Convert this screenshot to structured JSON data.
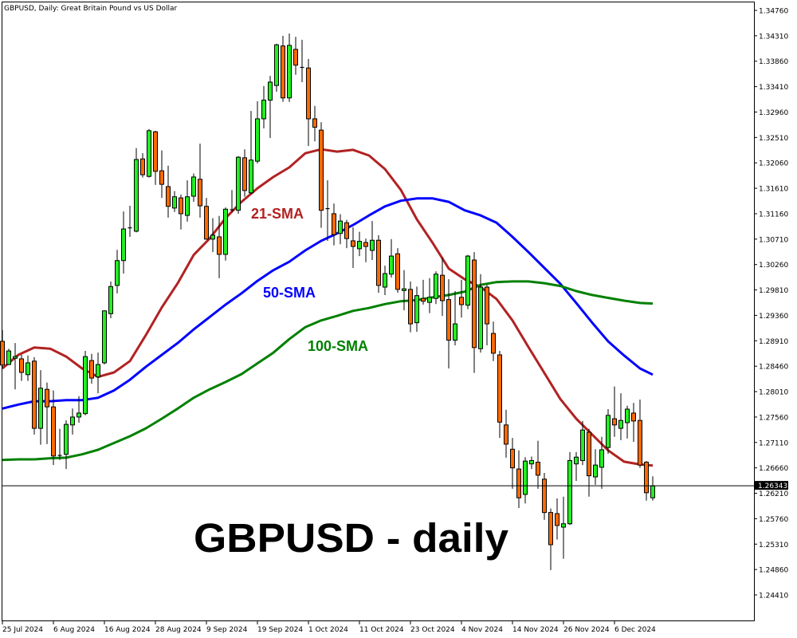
{
  "chart_data": {
    "type": "candlestick",
    "title": "GBPUSD, Daily:  Great Britain Pound vs US Dollar",
    "annotation": "GBPUSD - daily",
    "ylim": [
      1.2411,
      1.3476
    ],
    "grid": false,
    "y_ticks": [
      "1.34760",
      "1.34310",
      "1.33860",
      "1.33410",
      "1.32960",
      "1.32510",
      "1.32060",
      "1.31610",
      "1.31160",
      "1.30710",
      "1.30260",
      "1.29810",
      "1.29360",
      "1.28910",
      "1.28460",
      "1.28010",
      "1.27560",
      "1.27110",
      "1.26660",
      "1.26210",
      "1.25760",
      "1.25310",
      "1.24860",
      "1.24410"
    ],
    "x_ticks": [
      {
        "label": "25 Jul 2024",
        "at_candle": 0
      },
      {
        "label": "6 Aug 2024",
        "at_candle": 8
      },
      {
        "label": "16 Aug 2024",
        "at_candle": 16
      },
      {
        "label": "28 Aug 2024",
        "at_candle": 24
      },
      {
        "label": "9 Sep 2024",
        "at_candle": 32
      },
      {
        "label": "19 Sep 2024",
        "at_candle": 40
      },
      {
        "label": "1 Oct 2024",
        "at_candle": 48
      },
      {
        "label": "11 Oct 2024",
        "at_candle": 56
      },
      {
        "label": "23 Oct 2024",
        "at_candle": 64
      },
      {
        "label": "4 Nov 2024",
        "at_candle": 72
      },
      {
        "label": "14 Nov 2024",
        "at_candle": 80
      },
      {
        "label": "26 Nov 2024",
        "at_candle": 88
      },
      {
        "label": "6 Dec 2024",
        "at_candle": 96
      }
    ],
    "current_price": {
      "value": 1.26343,
      "label": "1.26343"
    },
    "colors": {
      "bull": "#22ee22",
      "bear": "#ff6a00",
      "sma21": "#b22222",
      "sma50": "#0000ff",
      "sma100": "#008000",
      "price_label_bg": "#000000"
    },
    "candles_ohlc": [
      [
        1.289,
        1.291,
        1.2842,
        1.2848
      ],
      [
        1.2849,
        1.2877,
        1.2848,
        1.2873
      ],
      [
        1.286,
        1.2887,
        1.2805,
        1.2863
      ],
      [
        1.2859,
        1.2866,
        1.282,
        1.2835
      ],
      [
        1.2831,
        1.2865,
        1.282,
        1.2852
      ],
      [
        1.2855,
        1.2862,
        1.2725,
        1.2736
      ],
      [
        1.2736,
        1.2839,
        1.2707,
        1.2807
      ],
      [
        1.2805,
        1.2817,
        1.2708,
        1.2774
      ],
      [
        1.2774,
        1.2803,
        1.2671,
        1.2687
      ],
      [
        1.2687,
        1.2735,
        1.268,
        1.2688
      ],
      [
        1.269,
        1.275,
        1.2664,
        1.2743
      ],
      [
        1.2742,
        1.2771,
        1.2725,
        1.2756
      ],
      [
        1.2756,
        1.2793,
        1.2746,
        1.2763
      ],
      [
        1.2762,
        1.2873,
        1.2759,
        1.2863
      ],
      [
        1.2856,
        1.2868,
        1.2815,
        1.2825
      ],
      [
        1.2827,
        1.287,
        1.2798,
        1.2849
      ],
      [
        1.2852,
        1.2945,
        1.2849,
        1.2944
      ],
      [
        1.2939,
        1.2996,
        1.2931,
        1.2987
      ],
      [
        1.2989,
        1.3052,
        1.2975,
        1.3033
      ],
      [
        1.3033,
        1.312,
        1.301,
        1.3089
      ],
      [
        1.309,
        1.313,
        1.3075,
        1.3091
      ],
      [
        1.3085,
        1.3232,
        1.3083,
        1.3212
      ],
      [
        1.3213,
        1.3223,
        1.318,
        1.3185
      ],
      [
        1.3182,
        1.3266,
        1.318,
        1.3263
      ],
      [
        1.3261,
        1.3263,
        1.3167,
        1.3191
      ],
      [
        1.3192,
        1.3228,
        1.3144,
        1.3168
      ],
      [
        1.3164,
        1.3201,
        1.3109,
        1.3129
      ],
      [
        1.3126,
        1.3156,
        1.3119,
        1.3146
      ],
      [
        1.3144,
        1.315,
        1.3088,
        1.3116
      ],
      [
        1.3113,
        1.3175,
        1.3102,
        1.3146
      ],
      [
        1.3147,
        1.3187,
        1.3137,
        1.3181
      ],
      [
        1.3177,
        1.324,
        1.3109,
        1.313
      ],
      [
        1.3129,
        1.3144,
        1.307,
        1.3071
      ],
      [
        1.3071,
        1.3108,
        1.3048,
        1.3078
      ],
      [
        1.3075,
        1.3112,
        1.3002,
        1.3044
      ],
      [
        1.3044,
        1.3127,
        1.3033,
        1.3124
      ],
      [
        1.3122,
        1.3158,
        1.3119,
        1.3123
      ],
      [
        1.3122,
        1.3218,
        1.3116,
        1.3216
      ],
      [
        1.3215,
        1.323,
        1.3146,
        1.3157
      ],
      [
        1.3153,
        1.3298,
        1.3151,
        1.3211
      ],
      [
        1.3209,
        1.3315,
        1.3205,
        1.3284
      ],
      [
        1.3284,
        1.3342,
        1.3267,
        1.3317
      ],
      [
        1.3317,
        1.336,
        1.325,
        1.3349
      ],
      [
        1.3343,
        1.3417,
        1.3332,
        1.3415
      ],
      [
        1.3413,
        1.3431,
        1.3314,
        1.3321
      ],
      [
        1.3321,
        1.3435,
        1.3314,
        1.3414
      ],
      [
        1.3407,
        1.3429,
        1.3362,
        1.3379
      ],
      [
        1.3375,
        1.3424,
        1.3349,
        1.3374
      ],
      [
        1.3374,
        1.339,
        1.3236,
        1.3284
      ],
      [
        1.3284,
        1.3307,
        1.3244,
        1.3269
      ],
      [
        1.3264,
        1.3278,
        1.3091,
        1.3122
      ],
      [
        1.3125,
        1.3175,
        1.3068,
        1.3124
      ],
      [
        1.3116,
        1.3134,
        1.306,
        1.3079
      ],
      [
        1.3081,
        1.3115,
        1.3062,
        1.3103
      ],
      [
        1.31,
        1.3105,
        1.3055,
        1.3072
      ],
      [
        1.3068,
        1.3092,
        1.302,
        1.3058
      ],
      [
        1.3054,
        1.3084,
        1.3041,
        1.3067
      ],
      [
        1.3065,
        1.3072,
        1.303,
        1.3058
      ],
      [
        1.3051,
        1.3103,
        1.3034,
        1.3069
      ],
      [
        1.3069,
        1.3078,
        1.2976,
        1.2989
      ],
      [
        1.2986,
        1.3024,
        1.2972,
        1.301
      ],
      [
        1.3009,
        1.3071,
        1.3003,
        1.3041
      ],
      [
        1.3045,
        1.3055,
        1.2976,
        1.2982
      ],
      [
        1.298,
        1.3016,
        1.2945,
        1.2983
      ],
      [
        1.2982,
        1.2996,
        1.2906,
        1.2921
      ],
      [
        1.2923,
        1.2987,
        1.2907,
        1.2971
      ],
      [
        1.2966,
        1.2999,
        1.2955,
        1.2961
      ],
      [
        1.2959,
        1.3002,
        1.294,
        1.2968
      ],
      [
        1.2966,
        1.3014,
        1.2956,
        1.3009
      ],
      [
        1.3007,
        1.3038,
        1.2935,
        1.2962
      ],
      [
        1.2964,
        1.3,
        1.2842,
        1.2892
      ],
      [
        1.2892,
        1.2979,
        1.2883,
        1.2921
      ],
      [
        1.2968,
        1.2999,
        1.2932,
        1.2955
      ],
      [
        1.2954,
        1.3043,
        1.2947,
        1.3041
      ],
      [
        1.3034,
        1.3048,
        1.2834,
        1.2879
      ],
      [
        1.2877,
        1.3009,
        1.287,
        1.2986
      ],
      [
        1.2986,
        1.299,
        1.2883,
        1.2921
      ],
      [
        1.2904,
        1.2925,
        1.2855,
        1.2869
      ],
      [
        1.2866,
        1.2873,
        1.2719,
        1.2747
      ],
      [
        1.2742,
        1.2769,
        1.2684,
        1.2708
      ],
      [
        1.2699,
        1.2719,
        1.2629,
        1.2666
      ],
      [
        1.2664,
        1.2697,
        1.2595,
        1.2613
      ],
      [
        1.2619,
        1.2685,
        1.2603,
        1.2678
      ],
      [
        1.2673,
        1.2686,
        1.2664,
        1.2679
      ],
      [
        1.2676,
        1.2714,
        1.2629,
        1.2653
      ],
      [
        1.2646,
        1.2657,
        1.2574,
        1.2587
      ],
      [
        1.2587,
        1.2594,
        1.2485,
        1.253
      ],
      [
        1.2585,
        1.2612,
        1.2539,
        1.2564
      ],
      [
        1.2561,
        1.2615,
        1.2505,
        1.2567
      ],
      [
        1.2567,
        1.2694,
        1.2565,
        1.2679
      ],
      [
        1.2673,
        1.2694,
        1.2643,
        1.2685
      ],
      [
        1.2679,
        1.2749,
        1.2671,
        1.2733
      ],
      [
        1.2729,
        1.2735,
        1.2615,
        1.2652
      ],
      [
        1.265,
        1.2699,
        1.2636,
        1.2671
      ],
      [
        1.2667,
        1.2721,
        1.2629,
        1.2698
      ],
      [
        1.2702,
        1.277,
        1.2691,
        1.2759
      ],
      [
        1.2753,
        1.281,
        1.2721,
        1.2742
      ],
      [
        1.2736,
        1.2798,
        1.2715,
        1.275
      ],
      [
        1.2746,
        1.2776,
        1.2718,
        1.277
      ],
      [
        1.2763,
        1.2781,
        1.2712,
        1.2749
      ],
      [
        1.275,
        1.2787,
        1.2666,
        1.2671
      ],
      [
        1.2676,
        1.2678,
        1.2608,
        1.2622
      ],
      [
        1.2613,
        1.2651,
        1.2608,
        1.2634
      ]
    ],
    "series": [
      {
        "name": "21-SMA",
        "color": "#b22222",
        "points_candle_price": [
          [
            0,
            1.2842
          ],
          [
            2.5,
            1.2866
          ],
          [
            5,
            1.2879
          ],
          [
            7.5,
            1.2877
          ],
          [
            10,
            1.2863
          ],
          [
            12.5,
            1.2842
          ],
          [
            15,
            1.2827
          ],
          [
            17.5,
            1.2835
          ],
          [
            20,
            1.2855
          ],
          [
            22.5,
            1.2901
          ],
          [
            25,
            1.295
          ],
          [
            27.5,
            1.2993
          ],
          [
            30,
            1.3043
          ],
          [
            32.5,
            1.3072
          ],
          [
            35,
            1.3108
          ],
          [
            37.5,
            1.3137
          ],
          [
            40,
            1.3161
          ],
          [
            42.5,
            1.3181
          ],
          [
            45,
            1.3198
          ],
          [
            47.5,
            1.3223
          ],
          [
            50,
            1.323
          ],
          [
            52.5,
            1.3226
          ],
          [
            55,
            1.3229
          ],
          [
            57.5,
            1.3219
          ],
          [
            60,
            1.3195
          ],
          [
            62.5,
            1.3158
          ],
          [
            65,
            1.3106
          ],
          [
            67.5,
            1.3064
          ],
          [
            70,
            1.3019
          ],
          [
            72.5,
            1.3
          ],
          [
            75,
            1.2986
          ],
          [
            77.5,
            1.2965
          ],
          [
            80,
            1.2927
          ],
          [
            82.5,
            1.288
          ],
          [
            85,
            1.2834
          ],
          [
            87.5,
            1.2788
          ],
          [
            90,
            1.2753
          ],
          [
            92.5,
            1.2725
          ],
          [
            95,
            1.2697
          ],
          [
            97.5,
            1.2677
          ],
          [
            100,
            1.2672
          ],
          [
            102,
            1.267
          ]
        ]
      },
      {
        "name": "50-SMA",
        "color": "#0000ff",
        "points_candle_price": [
          [
            0,
            1.2771
          ],
          [
            2.5,
            1.2778
          ],
          [
            5,
            1.2784
          ],
          [
            7.5,
            1.2784
          ],
          [
            10,
            1.2786
          ],
          [
            12.5,
            1.2786
          ],
          [
            15,
            1.279
          ],
          [
            17.5,
            1.2803
          ],
          [
            20,
            1.2822
          ],
          [
            22.5,
            1.2845
          ],
          [
            25,
            1.2866
          ],
          [
            27.5,
            1.2887
          ],
          [
            30,
            1.2911
          ],
          [
            32.5,
            1.2933
          ],
          [
            35,
            1.2955
          ],
          [
            37.5,
            1.2975
          ],
          [
            40,
            1.2997
          ],
          [
            42.5,
            1.3016
          ],
          [
            45,
            1.3031
          ],
          [
            47.5,
            1.3051
          ],
          [
            50,
            1.3068
          ],
          [
            52.5,
            1.3081
          ],
          [
            55,
            1.3096
          ],
          [
            57.5,
            1.3113
          ],
          [
            60,
            1.3129
          ],
          [
            62.5,
            1.3139
          ],
          [
            65,
            1.3143
          ],
          [
            67.5,
            1.3143
          ],
          [
            70,
            1.3137
          ],
          [
            72.5,
            1.3122
          ],
          [
            75,
            1.3113
          ],
          [
            77.5,
            1.31
          ],
          [
            80,
            1.3075
          ],
          [
            82.5,
            1.3048
          ],
          [
            85,
            1.302
          ],
          [
            87.5,
            1.2992
          ],
          [
            90,
            1.2958
          ],
          [
            92.5,
            1.2923
          ],
          [
            95,
            1.289
          ],
          [
            97.5,
            1.2865
          ],
          [
            100,
            1.2842
          ],
          [
            102,
            1.2831
          ]
        ]
      },
      {
        "name": "100-SMA",
        "color": "#008000",
        "points_candle_price": [
          [
            0,
            1.268
          ],
          [
            2.5,
            1.2681
          ],
          [
            5,
            1.2681
          ],
          [
            7.5,
            1.2683
          ],
          [
            10,
            1.2684
          ],
          [
            12.5,
            1.269
          ],
          [
            15,
            1.2698
          ],
          [
            17.5,
            1.271
          ],
          [
            20,
            1.2722
          ],
          [
            22.5,
            1.2736
          ],
          [
            25,
            1.2753
          ],
          [
            27.5,
            1.2771
          ],
          [
            30,
            1.279
          ],
          [
            32.5,
            1.2805
          ],
          [
            35,
            1.2818
          ],
          [
            37.5,
            1.2832
          ],
          [
            40,
            1.2851
          ],
          [
            42.5,
            1.287
          ],
          [
            45,
            1.2894
          ],
          [
            47.5,
            1.2915
          ],
          [
            50,
            1.2927
          ],
          [
            52.5,
            1.2935
          ],
          [
            55,
            1.2944
          ],
          [
            57.5,
            1.2949
          ],
          [
            60,
            1.2956
          ],
          [
            62.5,
            1.2961
          ],
          [
            65,
            1.2963
          ],
          [
            67.5,
            1.2968
          ],
          [
            70,
            1.2972
          ],
          [
            72.5,
            1.2978
          ],
          [
            75,
            1.299
          ],
          [
            77.5,
            1.2995
          ],
          [
            80,
            1.2996
          ],
          [
            82.5,
            1.2996
          ],
          [
            85,
            1.2993
          ],
          [
            87.5,
            1.2988
          ],
          [
            90,
            1.2979
          ],
          [
            92.5,
            1.2972
          ],
          [
            95,
            1.2967
          ],
          [
            97.5,
            1.2962
          ],
          [
            100,
            1.2958
          ],
          [
            102,
            1.2957
          ]
        ]
      }
    ]
  }
}
